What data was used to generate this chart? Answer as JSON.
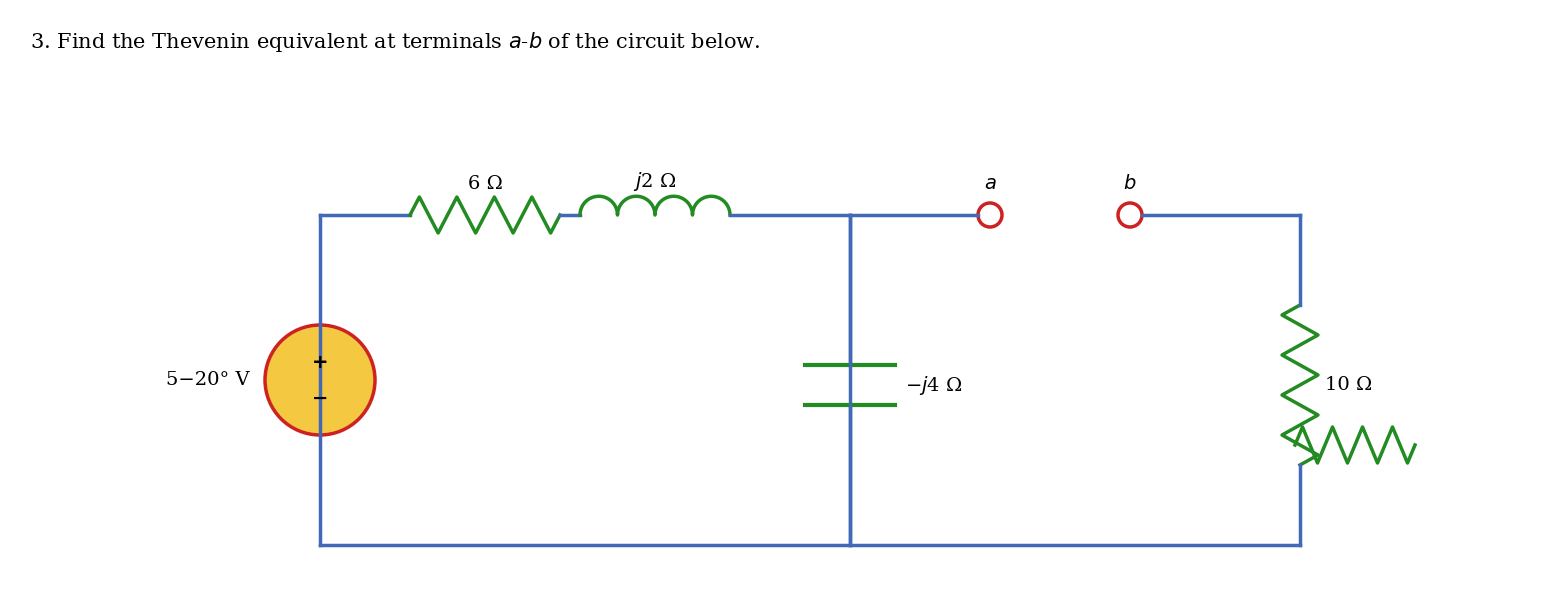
{
  "title": "3. Find the Thevenin equivalent at terminals $a$-$b$ of the circuit below.",
  "title_fontsize": 15,
  "bg_color": "#ffffff",
  "circuit_color": "#4169b8",
  "resistor_color": "#228B22",
  "inductor_color": "#228B22",
  "capacitor_color": "#228B22",
  "resistor10_color": "#228B22",
  "source_fill": "#f5c842",
  "source_border": "#cc2222",
  "terminal_color": "#cc2222",
  "label_6ohm": "6 Ω",
  "label_j2ohm": "$j$2 Ω",
  "label_neg_j4": "−$j$4 Ω",
  "label_10ohm": "10 Ω",
  "label_a": "$a$",
  "label_b": "$b$",
  "label_source": "5−20° V"
}
